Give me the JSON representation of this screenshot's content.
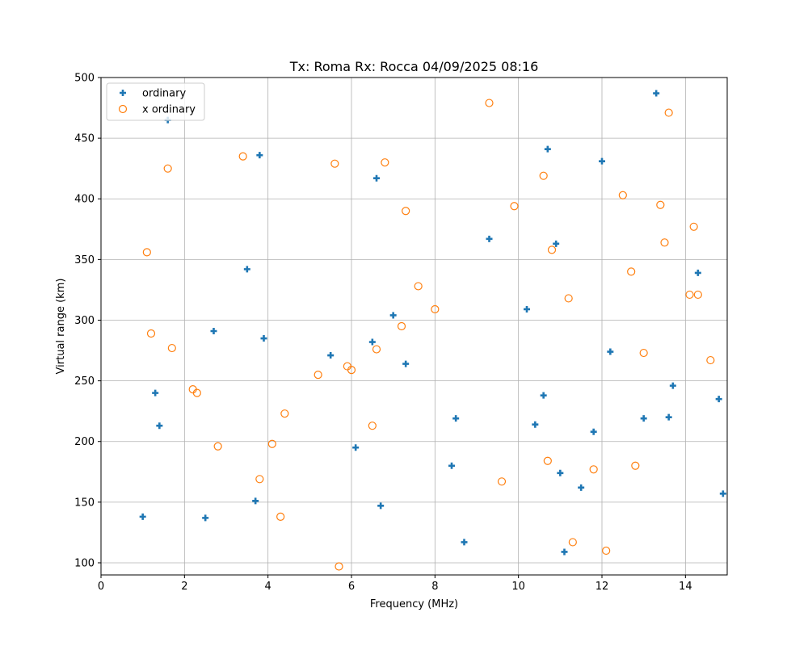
{
  "chart_data": {
    "type": "scatter",
    "title": "Tx: Roma Rx: Rocca 04/09/2025 08:16",
    "xlabel": "Frequency (MHz)",
    "ylabel": "Virtual range (km)",
    "xlim": [
      0,
      15
    ],
    "ylim": [
      90,
      500
    ],
    "xticks": [
      0,
      2,
      4,
      6,
      8,
      10,
      12,
      14
    ],
    "yticks": [
      100,
      150,
      200,
      250,
      300,
      350,
      400,
      450,
      500
    ],
    "grid": true,
    "legend_placement": "upper-left",
    "series": [
      {
        "name": "ordinary",
        "marker": "plus",
        "color": "#1f77b4",
        "points": [
          [
            1.6,
            465
          ],
          [
            1.0,
            138
          ],
          [
            1.3,
            240
          ],
          [
            1.4,
            213
          ],
          [
            2.5,
            137
          ],
          [
            2.7,
            291
          ],
          [
            3.5,
            342
          ],
          [
            3.8,
            436
          ],
          [
            3.9,
            285
          ],
          [
            3.7,
            151
          ],
          [
            5.5,
            271
          ],
          [
            6.1,
            195
          ],
          [
            6.5,
            282
          ],
          [
            6.6,
            417
          ],
          [
            6.7,
            147
          ],
          [
            7.0,
            304
          ],
          [
            7.3,
            264
          ],
          [
            8.4,
            180
          ],
          [
            8.5,
            219
          ],
          [
            8.7,
            117
          ],
          [
            9.3,
            367
          ],
          [
            10.2,
            309
          ],
          [
            10.4,
            214
          ],
          [
            10.6,
            238
          ],
          [
            10.7,
            441
          ],
          [
            10.9,
            363
          ],
          [
            11.0,
            174
          ],
          [
            11.1,
            109
          ],
          [
            11.5,
            162
          ],
          [
            11.8,
            208
          ],
          [
            12.0,
            431
          ],
          [
            12.2,
            274
          ],
          [
            13.0,
            219
          ],
          [
            13.3,
            487
          ],
          [
            13.6,
            220
          ],
          [
            13.7,
            246
          ],
          [
            14.3,
            339
          ],
          [
            14.8,
            235
          ],
          [
            14.9,
            157
          ]
        ]
      },
      {
        "name": "x ordinary",
        "marker": "open-circle",
        "color": "#ff7f0e",
        "points": [
          [
            1.1,
            356
          ],
          [
            1.2,
            289
          ],
          [
            1.6,
            425
          ],
          [
            1.7,
            277
          ],
          [
            2.2,
            243
          ],
          [
            2.3,
            240
          ],
          [
            2.8,
            196
          ],
          [
            3.4,
            435
          ],
          [
            3.8,
            169
          ],
          [
            4.1,
            198
          ],
          [
            4.3,
            138
          ],
          [
            4.4,
            223
          ],
          [
            5.2,
            255
          ],
          [
            5.6,
            429
          ],
          [
            5.7,
            97
          ],
          [
            5.9,
            262
          ],
          [
            6.0,
            259
          ],
          [
            6.5,
            213
          ],
          [
            6.6,
            276
          ],
          [
            6.8,
            430
          ],
          [
            7.2,
            295
          ],
          [
            7.3,
            390
          ],
          [
            7.6,
            328
          ],
          [
            8.0,
            309
          ],
          [
            9.3,
            479
          ],
          [
            9.6,
            167
          ],
          [
            9.9,
            394
          ],
          [
            10.6,
            419
          ],
          [
            10.7,
            184
          ],
          [
            10.8,
            358
          ],
          [
            11.2,
            318
          ],
          [
            11.3,
            117
          ],
          [
            11.8,
            177
          ],
          [
            12.1,
            110
          ],
          [
            12.5,
            403
          ],
          [
            12.7,
            340
          ],
          [
            12.8,
            180
          ],
          [
            13.0,
            273
          ],
          [
            13.4,
            395
          ],
          [
            13.5,
            364
          ],
          [
            13.6,
            471
          ],
          [
            14.1,
            321
          ],
          [
            14.2,
            377
          ],
          [
            14.3,
            321
          ],
          [
            14.6,
            267
          ]
        ]
      }
    ]
  }
}
